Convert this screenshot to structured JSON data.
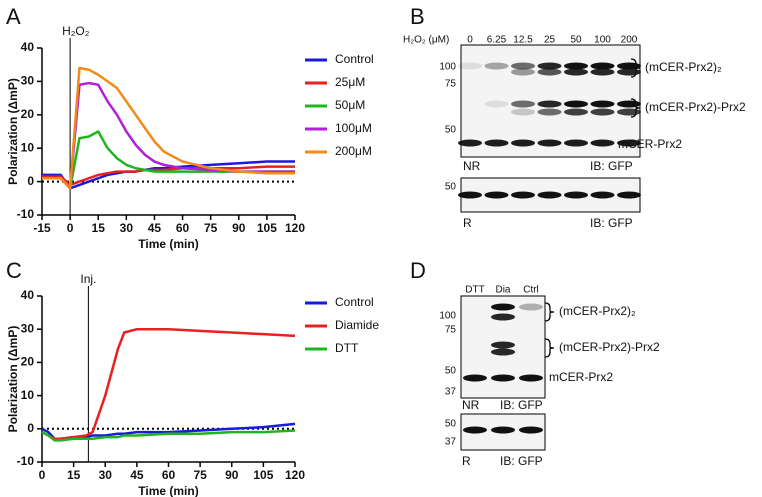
{
  "chart_data": [
    {
      "type": "line",
      "panel": "A",
      "annotation": {
        "text": "H₂O₂",
        "x": 0
      },
      "xlabel": "Time (min)",
      "ylabel": "Polarization (ΔmP)",
      "x": [
        -15,
        -10,
        -5,
        0,
        5,
        10,
        15,
        20,
        25,
        30,
        35,
        40,
        45,
        50,
        60,
        75,
        90,
        105,
        120
      ],
      "series": [
        {
          "name": "Control",
          "color": "#1a1adb",
          "values": [
            2,
            2,
            2,
            -2,
            -1,
            0,
            1,
            2,
            2.5,
            3,
            3,
            3.5,
            4,
            4,
            4.5,
            5,
            5.5,
            6,
            6
          ]
        },
        {
          "name": "25μM",
          "color": "#e8201f",
          "values": [
            1.5,
            1.5,
            1.5,
            -1,
            0,
            1,
            2,
            2.5,
            3,
            3,
            3,
            3.5,
            3.5,
            3.5,
            4,
            4,
            4,
            4.5,
            4.5
          ]
        },
        {
          "name": "50μM",
          "color": "#1fb51f",
          "values": [
            1,
            1,
            1,
            -2,
            13,
            13.5,
            15,
            10,
            7,
            5,
            4,
            3.5,
            3,
            3,
            3,
            3,
            3,
            3,
            3
          ]
        },
        {
          "name": "100μM",
          "color": "#b21fd6",
          "values": [
            1,
            1,
            1,
            -2,
            29,
            29.5,
            29,
            24,
            20,
            15,
            11,
            8,
            6,
            5,
            4,
            3.5,
            3,
            3,
            3
          ]
        },
        {
          "name": "200μM",
          "color": "#f28a1a",
          "values": [
            1,
            1,
            1,
            -2,
            34,
            33.5,
            32,
            30,
            28,
            24,
            20,
            16,
            12,
            9,
            6,
            4,
            3,
            2.5,
            2.5
          ]
        }
      ],
      "xlim": [
        -15,
        120
      ],
      "xticks": [
        -15,
        0,
        15,
        30,
        45,
        60,
        75,
        90,
        105,
        120
      ],
      "ylim": [
        -10,
        40
      ],
      "yticks": [
        -10,
        0,
        10,
        20,
        30,
        40
      ]
    },
    {
      "type": "line",
      "panel": "C",
      "annotation": {
        "text": "Inj.",
        "x": 22
      },
      "xlabel": "Time (min)",
      "ylabel": "Polarization (ΔmP)",
      "x": [
        0,
        3,
        6,
        9,
        15,
        21,
        24,
        30,
        36,
        39,
        45,
        60,
        75,
        90,
        105,
        120
      ],
      "series": [
        {
          "name": "Control",
          "color": "#1a1adb",
          "values": [
            0,
            -1,
            -3,
            -3,
            -2.5,
            -2.5,
            -2,
            -2,
            -1.5,
            -1.5,
            -1,
            -1,
            -0.5,
            0,
            0.5,
            1.5
          ]
        },
        {
          "name": "Diamide",
          "color": "#e8201f",
          "values": [
            -1,
            -2,
            -3,
            -3,
            -2.5,
            -2,
            -1,
            10,
            24,
            29,
            30,
            30,
            29.5,
            29,
            28.5,
            28
          ]
        },
        {
          "name": "DTT",
          "color": "#1fb51f",
          "values": [
            -1,
            -2,
            -3.5,
            -3.5,
            -3,
            -3,
            -3,
            -2.5,
            -2.5,
            -2,
            -2,
            -1.5,
            -1.5,
            -1,
            -1,
            -0.5
          ]
        }
      ],
      "xlim": [
        0,
        120
      ],
      "xticks": [
        0,
        15,
        30,
        45,
        60,
        75,
        90,
        105,
        120
      ],
      "ylim": [
        -10,
        40
      ],
      "yticks": [
        -10,
        0,
        10,
        20,
        30,
        40
      ]
    }
  ],
  "blots": [
    {
      "panel": "B",
      "treatment": "H₂O₂ (μM)",
      "lanes": [
        "0",
        "6.25",
        "12.5",
        "25",
        "50",
        "100",
        "200"
      ],
      "upper": {
        "markers": [
          "100",
          "75",
          "50"
        ],
        "bands": [
          "(mCER-Prx2)₂",
          "(mCER-Prx2)-Prx2",
          "mCER-Prx2"
        ],
        "condition": "NR",
        "antibody": "IB: GFP"
      },
      "lower": {
        "markers": [
          "50"
        ],
        "condition": "R",
        "antibody": "IB: GFP"
      }
    },
    {
      "panel": "D",
      "lanes": [
        "DTT",
        "Dia",
        "Ctrl"
      ],
      "upper": {
        "markers": [
          "100",
          "75",
          "50",
          "37"
        ],
        "bands": [
          "(mCER-Prx2)₂",
          "(mCER-Prx2)-Prx2",
          "mCER-Prx2"
        ],
        "condition": "NR",
        "antibody": "IB: GFP"
      },
      "lower": {
        "markers": [
          "50",
          "37"
        ],
        "condition": "R",
        "antibody": "IB: GFP"
      }
    }
  ]
}
